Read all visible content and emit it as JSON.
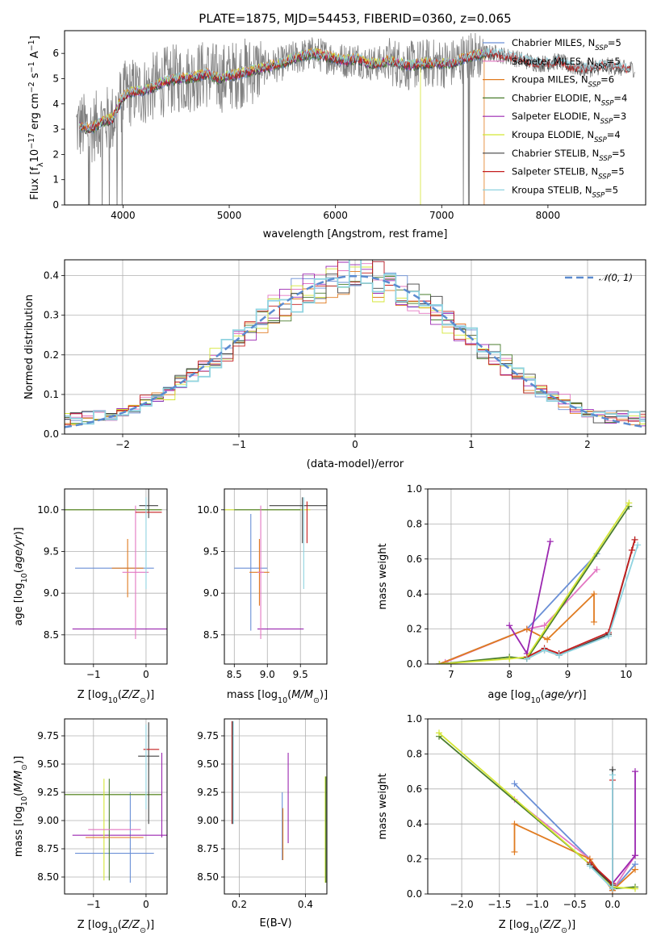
{
  "colors": {
    "Chabrier MILES": "#6a8fd6",
    "Salpeter MILES": "#e377c2",
    "Kroupa MILES": "#e07b20",
    "Chabrier ELODIE": "#4a7d2e",
    "Salpeter ELODIE": "#9b27b0",
    "Kroupa ELODIE": "#d4e635",
    "Chabrier STELIB": "#404040",
    "Salpeter STELIB": "#c41e1e",
    "Kroupa STELIB": "#8fd3e0",
    "data": "#808080",
    "gaussian": "#5b8bd0"
  },
  "chart_data": [
    {
      "id": "spectrum",
      "type": "line",
      "title": "PLATE=1875, MJD=54453, FIBERID=0360, z=0.065",
      "xlabel": "wavelength [Angstrom, rest frame]",
      "ylabel": "Flux [f$_\\lambda$10$^{-17}$ erg cm$^{-2}$ s$^{-1}$ A$^{-1}$]",
      "xlim": [
        3450,
        8920
      ],
      "ylim": [
        0,
        6.9
      ],
      "xticks": [
        4000,
        5000,
        6000,
        7000,
        8000
      ],
      "yticks": [
        0,
        1,
        2,
        3,
        4,
        5,
        6
      ],
      "grid": false,
      "legend_position": "right",
      "legend": [
        {
          "label": "Chabrier MILES, N_SSP=5",
          "text": "Chabrier MILES, N",
          "sub": "SSP",
          "n": "=5"
        },
        {
          "label": "Salpeter MILES, N_SSP=5",
          "text": "Salpeter MILES, N",
          "sub": "SSP",
          "n": "=5"
        },
        {
          "label": "Kroupa MILES, N_SSP=6",
          "text": "Kroupa MILES, N",
          "sub": "SSP",
          "n": "=6"
        },
        {
          "label": "Chabrier ELODIE, N_SSP=4",
          "text": "Chabrier ELODIE, N",
          "sub": "SSP",
          "n": "=4"
        },
        {
          "label": "Salpeter ELODIE, N_SSP=3",
          "text": "Salpeter ELODIE, N",
          "sub": "SSP",
          "n": "=3"
        },
        {
          "label": "Kroupa ELODIE, N_SSP=4",
          "text": "Kroupa ELODIE, N",
          "sub": "SSP",
          "n": "=4"
        },
        {
          "label": "Chabrier STELIB, N_SSP=5",
          "text": "Chabrier STELIB, N",
          "sub": "SSP",
          "n": "=5"
        },
        {
          "label": "Salpeter STELIB, N_SSP=5",
          "text": "Salpeter STELIB, N",
          "sub": "SSP",
          "n": "=5"
        },
        {
          "label": "Kroupa STELIB, N_SSP=5",
          "text": "Kroupa STELIB, N",
          "sub": "SSP",
          "n": "=5"
        }
      ],
      "model_continuum": {
        "x": [
          3600,
          3700,
          3800,
          3900,
          4000,
          4100,
          4200,
          4300,
          4400,
          4500,
          4600,
          4700,
          4800,
          4900,
          5000,
          5100,
          5200,
          5300,
          5400,
          5500,
          5600,
          5700,
          5800,
          5900,
          6000,
          6100,
          6200,
          6300,
          6400,
          6500,
          6600,
          6700,
          6800,
          6900,
          7000,
          7100,
          7200,
          7300,
          7400,
          7500,
          7600,
          7700,
          7800,
          7900,
          8000,
          8100,
          8200,
          8300,
          8400,
          8500,
          8600,
          8700
        ],
        "y": [
          3.1,
          3.0,
          3.3,
          3.4,
          4.3,
          4.5,
          4.5,
          4.7,
          4.9,
          5.0,
          5.0,
          5.1,
          5.2,
          5.0,
          5.1,
          5.2,
          5.3,
          5.4,
          5.5,
          5.6,
          5.8,
          5.9,
          6.0,
          5.9,
          5.8,
          5.7,
          5.8,
          5.6,
          5.6,
          5.7,
          5.6,
          5.5,
          5.6,
          5.6,
          5.6,
          5.6,
          5.8,
          5.9,
          6.0,
          6.0,
          5.9,
          5.8,
          5.7,
          5.6,
          5.6,
          5.7,
          5.5,
          5.4,
          5.4,
          5.5,
          5.5,
          5.4
        ]
      }
    },
    {
      "id": "residual_histogram",
      "type": "line",
      "xlabel": "(data-model)/error",
      "ylabel": "Normed distribution",
      "xlim": [
        -2.5,
        2.5
      ],
      "ylim": [
        0,
        0.44
      ],
      "xticks": [
        -2,
        -1,
        0,
        1,
        2
      ],
      "yticks": [
        0.0,
        0.1,
        0.2,
        0.3,
        0.4
      ],
      "grid": true,
      "legend_position": "top-right",
      "reference_label": "𝒩(0, 1)",
      "bin_width": 0.1
    },
    {
      "id": "age_vs_Z",
      "type": "scatter",
      "xlabel": "Z [log10(Z/Z⊙)]",
      "ylabel": "age  [log10(age/yr)]",
      "xlim": [
        -1.55,
        0.4
      ],
      "ylim": [
        8.15,
        10.25
      ],
      "xticks": [
        -1,
        0
      ],
      "yticks": [
        8.5,
        9.0,
        9.5,
        10.0
      ],
      "grid": true,
      "errorbars": [
        {
          "model": "Chabrier MILES",
          "x": -0.6,
          "xerr": 0.75,
          "y": 9.3,
          "yerr": [
            0.0,
            0.0
          ]
        },
        {
          "model": "Kroupa ELODIE",
          "x": -1.0,
          "xerr": 1.3,
          "y": 10.0,
          "yerr": [
            0.0,
            0.0
          ]
        },
        {
          "model": "Chabrier ELODIE",
          "x": -0.7,
          "xerr": 1.0,
          "y": 10.0,
          "yerr": [
            0.0,
            0.0
          ]
        },
        {
          "model": "Salpeter ELODIE",
          "x": -0.45,
          "xerr": 0.95,
          "y": 8.57,
          "yerr": [
            0.0,
            0.0
          ]
        },
        {
          "model": "Kroupa MILES",
          "x": -0.35,
          "xerr": 0.3,
          "y": 9.3,
          "yerr": [
            0.35,
            0.35
          ]
        },
        {
          "model": "Salpeter MILES",
          "x": -0.2,
          "xerr": 0.25,
          "y": 9.25,
          "yerr": [
            0.8,
            0.8
          ]
        },
        {
          "model": "Chabrier STELIB",
          "x": 0.05,
          "xerr": 0.18,
          "y": 10.05,
          "yerr": [
            0.15,
            0.45
          ]
        },
        {
          "model": "Salpeter STELIB",
          "x": 0.05,
          "xerr": 0.25,
          "y": 9.97,
          "yerr": [
            0.0,
            0.0
          ]
        },
        {
          "model": "Kroupa STELIB",
          "x": 0.0,
          "xerr": 0.0,
          "y": 9.6,
          "yerr": [
            0.55,
            0.55
          ]
        }
      ]
    },
    {
      "id": "age_vs_mass",
      "type": "scatter",
      "xlabel": "mass [log10(M/M⊙)]",
      "ylabel": "",
      "xlim": [
        8.35,
        9.9
      ],
      "ylim": [
        8.15,
        10.25
      ],
      "xticks": [
        8.5,
        9.0,
        9.5
      ],
      "yticks": [
        8.5,
        9.0,
        9.5,
        10.0
      ],
      "grid": true,
      "errorbars": [
        {
          "model": "Chabrier MILES",
          "x": 8.75,
          "xerr": 0.25,
          "y": 9.3,
          "yerr": [
            0.75,
            0.65
          ]
        },
        {
          "model": "Kroupa ELODIE",
          "x": 9.0,
          "xerr": 0.65,
          "y": 10.0,
          "yerr": [
            0.0,
            0.0
          ]
        },
        {
          "model": "Chabrier ELODIE",
          "x": 9.0,
          "xerr": 0.5,
          "y": 10.0,
          "yerr": [
            0.0,
            0.0
          ]
        },
        {
          "model": "Salpeter ELODIE",
          "x": 9.2,
          "xerr": 0.35,
          "y": 8.57,
          "yerr": [
            0.0,
            0.0
          ]
        },
        {
          "model": "Kroupa MILES",
          "x": 8.88,
          "xerr": 0.15,
          "y": 9.25,
          "yerr": [
            0.4,
            0.4
          ]
        },
        {
          "model": "Salpeter MILES",
          "x": 8.9,
          "xerr": 0.05,
          "y": 9.25,
          "yerr": [
            0.8,
            0.8
          ]
        },
        {
          "model": "Chabrier STELIB",
          "x": 9.53,
          "xerr": 0.5,
          "y": 10.05,
          "yerr": [
            0.45,
            0.1
          ]
        },
        {
          "model": "Salpeter STELIB",
          "x": 9.6,
          "xerr": 0.0,
          "y": 9.95,
          "yerr": [
            0.35,
            0.15
          ]
        },
        {
          "model": "Kroupa STELIB",
          "x": 9.55,
          "xerr": 0.0,
          "y": 9.6,
          "yerr": [
            0.55,
            0.55
          ]
        }
      ]
    },
    {
      "id": "massweight_vs_age",
      "type": "line",
      "xlabel": "age  [log10(age/yr)]",
      "ylabel": "mass weight",
      "xlim": [
        6.6,
        10.35
      ],
      "ylim": [
        0,
        1.0
      ],
      "xticks": [
        7,
        8,
        9,
        10
      ],
      "yticks": [
        0.0,
        0.2,
        0.4,
        0.6,
        0.8,
        1.0
      ],
      "grid": true,
      "series": [
        {
          "model": "Chabrier MILES",
          "x": [
            6.8,
            8.3,
            9.5
          ],
          "y": [
            0.0,
            0.2,
            0.63
          ]
        },
        {
          "model": "Salpeter MILES",
          "x": [
            6.9,
            8.3,
            8.6,
            9.5
          ],
          "y": [
            0.01,
            0.2,
            0.22,
            0.54
          ]
        },
        {
          "model": "Kroupa MILES",
          "x": [
            6.8,
            8.3,
            8.65,
            9.45,
            9.45
          ],
          "y": [
            0.0,
            0.2,
            0.14,
            0.4,
            0.24
          ]
        },
        {
          "model": "Chabrier ELODIE",
          "x": [
            6.8,
            8.0,
            8.3,
            10.05
          ],
          "y": [
            0.0,
            0.04,
            0.03,
            0.9
          ]
        },
        {
          "model": "Salpeter ELODIE",
          "x": [
            8.0,
            8.3,
            8.7
          ],
          "y": [
            0.22,
            0.06,
            0.7
          ]
        },
        {
          "model": "Kroupa ELODIE",
          "x": [
            6.8,
            8.0,
            8.3,
            10.05
          ],
          "y": [
            0.0,
            0.03,
            0.04,
            0.92
          ]
        },
        {
          "model": "Chabrier STELIB",
          "x": [
            8.3,
            8.6,
            8.85,
            9.7,
            10.1,
            10.15
          ],
          "y": [
            0.03,
            0.08,
            0.05,
            0.17,
            0.65,
            0.71
          ]
        },
        {
          "model": "Salpeter STELIB",
          "x": [
            8.3,
            8.6,
            8.85,
            9.7,
            10.1,
            10.15
          ],
          "y": [
            0.04,
            0.09,
            0.06,
            0.18,
            0.65,
            0.71
          ]
        },
        {
          "model": "Kroupa STELIB",
          "x": [
            8.3,
            8.6,
            8.85,
            9.7,
            10.2
          ],
          "y": [
            0.03,
            0.08,
            0.05,
            0.16,
            0.68
          ]
        }
      ]
    },
    {
      "id": "mass_vs_Z",
      "type": "scatter",
      "xlabel": "Z [log10(Z/Z⊙)]",
      "ylabel": "mass [log10(M/M⊙)]",
      "xlim": [
        -1.55,
        0.4
      ],
      "ylim": [
        8.35,
        9.9
      ],
      "xticks": [
        -1,
        0
      ],
      "yticks": [
        8.5,
        8.75,
        9.0,
        9.25,
        9.5,
        9.75
      ],
      "grid": true,
      "errorbars": [
        {
          "model": "Chabrier MILES",
          "x": -0.6,
          "xerr": 0.75,
          "y": 8.71,
          "yerr": [
            0.0,
            0.0
          ]
        },
        {
          "model": "Chabrier MILES",
          "x": -0.3,
          "xerr": 0.0,
          "y": 8.85,
          "yerr": [
            0.4,
            0.4
          ]
        },
        {
          "model": "Kroupa ELODIE",
          "x": -1.0,
          "xerr": 1.3,
          "y": 9.23,
          "yerr": [
            0.0,
            0.0
          ]
        },
        {
          "model": "Chabrier ELODIE",
          "x": -0.7,
          "xerr": 1.0,
          "y": 9.23,
          "yerr": [
            0.0,
            0.0
          ]
        },
        {
          "model": "Salpeter ELODIE",
          "x": -0.45,
          "xerr": 0.95,
          "y": 8.87,
          "yerr": [
            0.0,
            0.0
          ]
        },
        {
          "model": "Kroupa ELODIE",
          "x": -0.8,
          "xerr": 0.0,
          "y": 8.92,
          "yerr": [
            0.45,
            0.45
          ]
        },
        {
          "model": "Chabrier ELODIE",
          "x": -0.7,
          "xerr": 0.0,
          "y": 8.92,
          "yerr": [
            0.45,
            0.45
          ]
        },
        {
          "model": "Kroupa MILES",
          "x": -0.6,
          "xerr": 0.55,
          "y": 8.85,
          "yerr": [
            0.0,
            0.0
          ]
        },
        {
          "model": "Salpeter MILES",
          "x": -0.6,
          "xerr": 0.5,
          "y": 8.92,
          "yerr": [
            0.0,
            0.0
          ]
        },
        {
          "model": "Chabrier STELIB",
          "x": 0.05,
          "xerr": 0.2,
          "y": 9.57,
          "yerr": [
            0.6,
            0.3
          ]
        },
        {
          "model": "Salpeter STELIB",
          "x": 0.1,
          "xerr": 0.15,
          "y": 9.63,
          "yerr": [
            0.0,
            0.0
          ]
        },
        {
          "model": "Kroupa STELIB",
          "x": 0.0,
          "xerr": 0.0,
          "y": 9.5,
          "yerr": [
            0.4,
            0.35
          ]
        },
        {
          "model": "Salpeter ELODIE",
          "x": 0.3,
          "xerr": 0.0,
          "y": 9.2,
          "yerr": [
            0.35,
            0.4
          ]
        }
      ]
    },
    {
      "id": "mass_vs_ebv",
      "type": "scatter",
      "xlabel": "E(B-V)",
      "ylabel": "",
      "xlim": [
        0.155,
        0.465
      ],
      "ylim": [
        8.35,
        9.9
      ],
      "xticks": [
        0.2,
        0.4
      ],
      "yticks": [
        8.5,
        8.75,
        9.0,
        9.25,
        9.5,
        9.75
      ],
      "grid": true,
      "errorbars": [
        {
          "model": "Salpeter STELIB",
          "x": 0.178,
          "xerr": 0.0,
          "y": 9.4,
          "yerr": [
            0.43,
            0.48
          ]
        },
        {
          "model": "Chabrier STELIB",
          "x": 0.18,
          "xerr": 0.0,
          "y": 9.4,
          "yerr": [
            0.43,
            0.48
          ]
        },
        {
          "model": "Kroupa STELIB",
          "x": 0.182,
          "xerr": 0.0,
          "y": 9.4,
          "yerr": [
            0.43,
            0.48
          ]
        },
        {
          "model": "Chabrier MILES",
          "x": 0.33,
          "xerr": 0.0,
          "y": 8.95,
          "yerr": [
            0.3,
            0.3
          ]
        },
        {
          "model": "Kroupa MILES",
          "x": 0.332,
          "xerr": 0.0,
          "y": 8.88,
          "yerr": [
            0.23,
            0.23
          ]
        },
        {
          "model": "Salpeter ELODIE",
          "x": 0.348,
          "xerr": 0.0,
          "y": 9.2,
          "yerr": [
            0.4,
            0.4
          ]
        },
        {
          "model": "Kroupa ELODIE",
          "x": 0.46,
          "xerr": 0.0,
          "y": 8.92,
          "yerr": [
            0.47,
            0.47
          ]
        },
        {
          "model": "Chabrier ELODIE",
          "x": 0.462,
          "xerr": 0.0,
          "y": 8.92,
          "yerr": [
            0.47,
            0.47
          ]
        }
      ]
    },
    {
      "id": "massweight_vs_Z",
      "type": "line",
      "xlabel": "Z [log10(Z/Z⊙)]",
      "ylabel": "mass weight",
      "xlim": [
        -2.45,
        0.45
      ],
      "ylim": [
        0,
        1.0
      ],
      "xticks": [
        -2.0,
        -1.5,
        -1.0,
        -0.5,
        0.0
      ],
      "yticks": [
        0.0,
        0.2,
        0.4,
        0.6,
        0.8,
        1.0
      ],
      "grid": true,
      "series": [
        {
          "model": "Chabrier MILES",
          "x": [
            -1.3,
            -0.3,
            0.0,
            0.3
          ],
          "y": [
            0.63,
            0.2,
            0.02,
            0.17
          ]
        },
        {
          "model": "Salpeter MILES",
          "x": [
            -1.3,
            -0.3,
            0.0,
            0.3
          ],
          "y": [
            0.54,
            0.2,
            0.02,
            0.22
          ]
        },
        {
          "model": "Kroupa MILES",
          "x": [
            -1.3,
            -1.3,
            -0.3,
            0.0,
            0.3
          ],
          "y": [
            0.24,
            0.4,
            0.2,
            0.02,
            0.14
          ]
        },
        {
          "model": "Chabrier ELODIE",
          "x": [
            -2.3,
            -0.3,
            0.0,
            0.3
          ],
          "y": [
            0.9,
            0.17,
            0.03,
            0.04
          ]
        },
        {
          "model": "Salpeter ELODIE",
          "x": [
            0.0,
            0.3,
            0.3
          ],
          "y": [
            0.06,
            0.22,
            0.7
          ]
        },
        {
          "model": "Kroupa ELODIE",
          "x": [
            -2.3,
            -0.3,
            0.0,
            0.3
          ],
          "y": [
            0.92,
            0.17,
            0.04,
            0.03
          ]
        },
        {
          "model": "Chabrier STELIB",
          "x": [
            -0.3,
            0.0,
            0.0
          ],
          "y": [
            0.17,
            0.05,
            0.71
          ]
        },
        {
          "model": "Salpeter STELIB",
          "x": [
            -0.3,
            0.0,
            0.0
          ],
          "y": [
            0.18,
            0.06,
            0.65
          ]
        },
        {
          "model": "Kroupa STELIB",
          "x": [
            -0.3,
            0.0,
            0.0
          ],
          "y": [
            0.16,
            0.03,
            0.68
          ]
        }
      ]
    }
  ]
}
